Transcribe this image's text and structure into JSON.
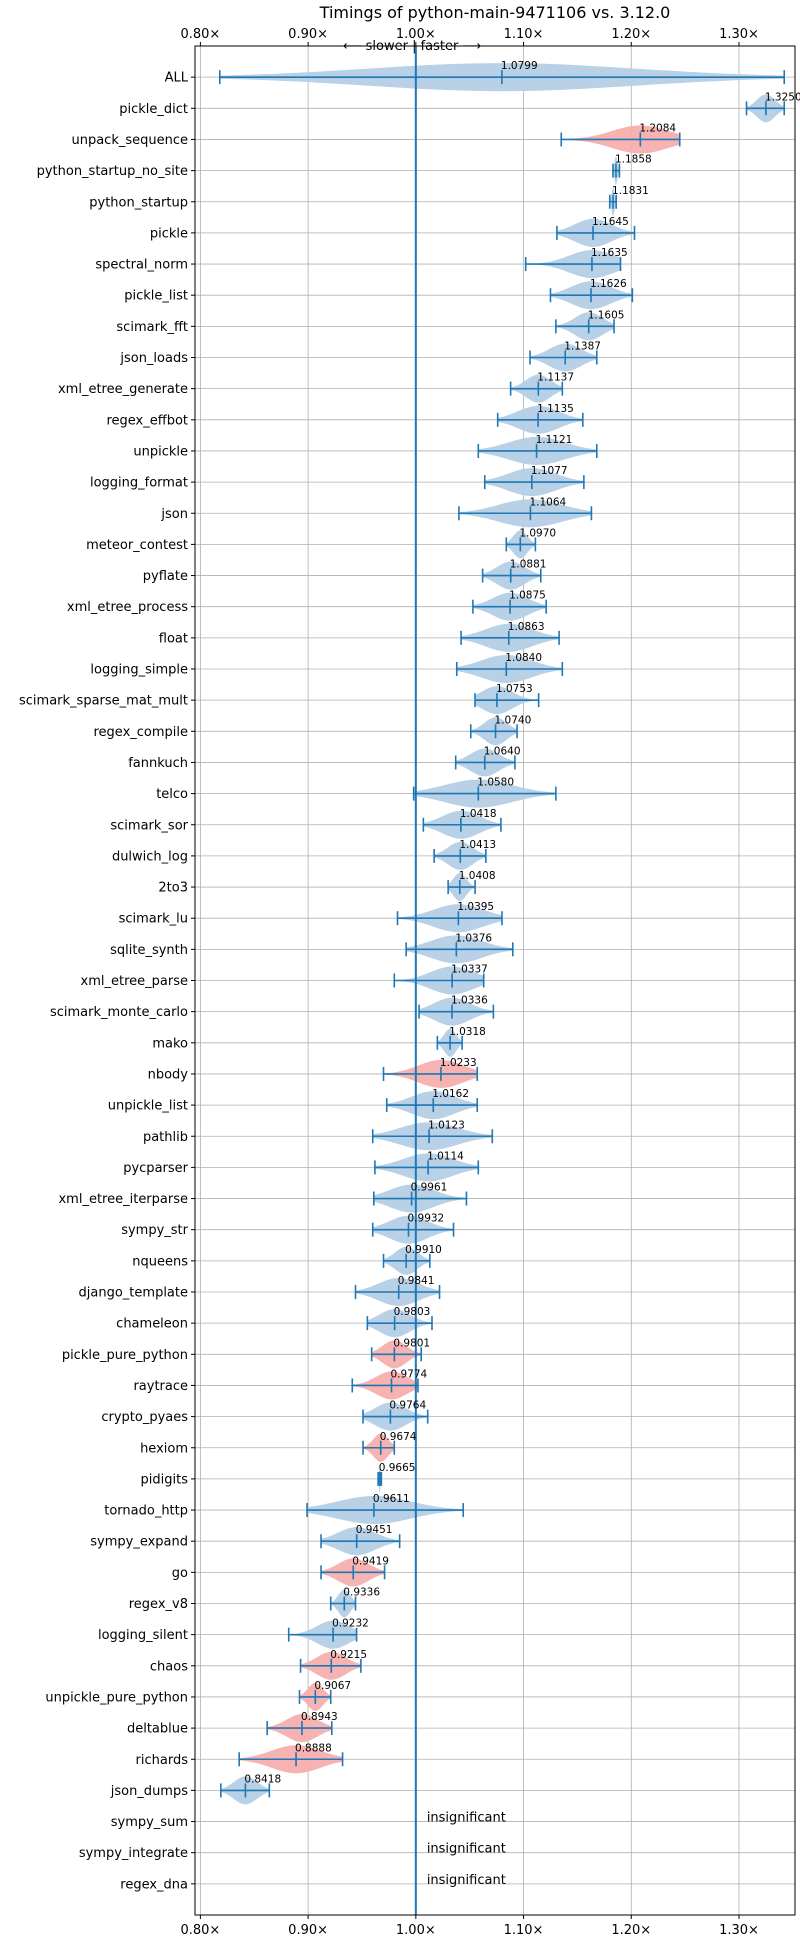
{
  "chart_data": {
    "type": "violin",
    "title": "Timings of python-main-9471106 vs. 3.12.0",
    "direction_label": "⟵ slower | faster ⟶",
    "xlim": [
      0.795,
      1.352
    ],
    "reference_value": 1.0,
    "x_ticks": [
      {
        "value": 0.8,
        "label": "0.80×"
      },
      {
        "value": 0.9,
        "label": "0.90×"
      },
      {
        "value": 1.0,
        "label": "1.00×"
      },
      {
        "value": 1.1,
        "label": "1.10×"
      },
      {
        "value": 1.2,
        "label": "1.20×"
      },
      {
        "value": 1.3,
        "label": "1.30×"
      }
    ],
    "grid": true,
    "colors": {
      "faster": "#b4cfe6",
      "slower": "#f7aeae",
      "line": "#1f77b4",
      "grid": "#b0b0b0"
    },
    "benchmarks": [
      {
        "name": "ALL",
        "value": 1.0799,
        "label": "1.0799",
        "min": 0.818,
        "max": 1.342,
        "status": "faster"
      },
      {
        "name": "pickle_dict",
        "value": 1.325,
        "label": "1.3250",
        "min": 1.307,
        "max": 1.342,
        "status": "faster"
      },
      {
        "name": "unpack_sequence",
        "value": 1.2084,
        "label": "1.2084",
        "min": 1.135,
        "max": 1.245,
        "status": "slower"
      },
      {
        "name": "python_startup_no_site",
        "value": 1.1858,
        "label": "1.1858",
        "min": 1.183,
        "max": 1.189,
        "status": "faster"
      },
      {
        "name": "python_startup",
        "value": 1.1831,
        "label": "1.1831",
        "min": 1.18,
        "max": 1.186,
        "status": "faster"
      },
      {
        "name": "pickle",
        "value": 1.1645,
        "label": "1.1645",
        "min": 1.131,
        "max": 1.203,
        "status": "faster"
      },
      {
        "name": "spectral_norm",
        "value": 1.1635,
        "label": "1.1635",
        "min": 1.102,
        "max": 1.19,
        "status": "faster"
      },
      {
        "name": "pickle_list",
        "value": 1.1626,
        "label": "1.1626",
        "min": 1.125,
        "max": 1.201,
        "status": "faster"
      },
      {
        "name": "scimark_fft",
        "value": 1.1605,
        "label": "1.1605",
        "min": 1.13,
        "max": 1.184,
        "status": "faster"
      },
      {
        "name": "json_loads",
        "value": 1.1387,
        "label": "1.1387",
        "min": 1.106,
        "max": 1.168,
        "status": "faster"
      },
      {
        "name": "xml_etree_generate",
        "value": 1.1137,
        "label": "1.1137",
        "min": 1.088,
        "max": 1.136,
        "status": "faster"
      },
      {
        "name": "regex_effbot",
        "value": 1.1135,
        "label": "1.1135",
        "min": 1.076,
        "max": 1.155,
        "status": "faster"
      },
      {
        "name": "unpickle",
        "value": 1.1121,
        "label": "1.1121",
        "min": 1.058,
        "max": 1.168,
        "status": "faster"
      },
      {
        "name": "logging_format",
        "value": 1.1077,
        "label": "1.1077",
        "min": 1.064,
        "max": 1.156,
        "status": "faster"
      },
      {
        "name": "json",
        "value": 1.1064,
        "label": "1.1064",
        "min": 1.04,
        "max": 1.163,
        "status": "faster"
      },
      {
        "name": "meteor_contest",
        "value": 1.097,
        "label": "1.0970",
        "min": 1.084,
        "max": 1.111,
        "status": "faster"
      },
      {
        "name": "pyflate",
        "value": 1.0881,
        "label": "1.0881",
        "min": 1.062,
        "max": 1.116,
        "status": "faster"
      },
      {
        "name": "xml_etree_process",
        "value": 1.0875,
        "label": "1.0875",
        "min": 1.053,
        "max": 1.121,
        "status": "faster"
      },
      {
        "name": "float",
        "value": 1.0863,
        "label": "1.0863",
        "min": 1.042,
        "max": 1.133,
        "status": "faster"
      },
      {
        "name": "logging_simple",
        "value": 1.084,
        "label": "1.0840",
        "min": 1.038,
        "max": 1.136,
        "status": "faster"
      },
      {
        "name": "scimark_sparse_mat_mult",
        "value": 1.0753,
        "label": "1.0753",
        "min": 1.055,
        "max": 1.114,
        "status": "faster"
      },
      {
        "name": "regex_compile",
        "value": 1.074,
        "label": "1.0740",
        "min": 1.051,
        "max": 1.094,
        "status": "faster"
      },
      {
        "name": "fannkuch",
        "value": 1.064,
        "label": "1.0640",
        "min": 1.037,
        "max": 1.092,
        "status": "faster"
      },
      {
        "name": "telco",
        "value": 1.058,
        "label": "1.0580",
        "min": 0.998,
        "max": 1.13,
        "status": "faster"
      },
      {
        "name": "scimark_sor",
        "value": 1.0418,
        "label": "1.0418",
        "min": 1.007,
        "max": 1.079,
        "status": "faster"
      },
      {
        "name": "dulwich_log",
        "value": 1.0413,
        "label": "1.0413",
        "min": 1.017,
        "max": 1.065,
        "status": "faster"
      },
      {
        "name": "2to3",
        "value": 1.0408,
        "label": "1.0408",
        "min": 1.03,
        "max": 1.055,
        "status": "faster"
      },
      {
        "name": "scimark_lu",
        "value": 1.0395,
        "label": "1.0395",
        "min": 0.983,
        "max": 1.08,
        "status": "faster"
      },
      {
        "name": "sqlite_synth",
        "value": 1.0376,
        "label": "1.0376",
        "min": 0.991,
        "max": 1.09,
        "status": "faster"
      },
      {
        "name": "xml_etree_parse",
        "value": 1.0337,
        "label": "1.0337",
        "min": 0.98,
        "max": 1.063,
        "status": "faster"
      },
      {
        "name": "scimark_monte_carlo",
        "value": 1.0336,
        "label": "1.0336",
        "min": 1.003,
        "max": 1.072,
        "status": "faster"
      },
      {
        "name": "mako",
        "value": 1.0318,
        "label": "1.0318",
        "min": 1.02,
        "max": 1.043,
        "status": "faster"
      },
      {
        "name": "nbody",
        "value": 1.0233,
        "label": "1.0233",
        "min": 0.97,
        "max": 1.057,
        "status": "slower"
      },
      {
        "name": "unpickle_list",
        "value": 1.0162,
        "label": "1.0162",
        "min": 0.973,
        "max": 1.057,
        "status": "faster"
      },
      {
        "name": "pathlib",
        "value": 1.0123,
        "label": "1.0123",
        "min": 0.96,
        "max": 1.071,
        "status": "faster"
      },
      {
        "name": "pycparser",
        "value": 1.0114,
        "label": "1.0114",
        "min": 0.962,
        "max": 1.058,
        "status": "faster"
      },
      {
        "name": "xml_etree_iterparse",
        "value": 0.9961,
        "label": "0.9961",
        "min": 0.961,
        "max": 1.047,
        "status": "faster"
      },
      {
        "name": "sympy_str",
        "value": 0.9932,
        "label": "0.9932",
        "min": 0.96,
        "max": 1.035,
        "status": "faster"
      },
      {
        "name": "nqueens",
        "value": 0.991,
        "label": "0.9910",
        "min": 0.97,
        "max": 1.013,
        "status": "faster"
      },
      {
        "name": "django_template",
        "value": 0.9841,
        "label": "0.9841",
        "min": 0.944,
        "max": 1.022,
        "status": "faster"
      },
      {
        "name": "chameleon",
        "value": 0.9803,
        "label": "0.9803",
        "min": 0.955,
        "max": 1.015,
        "status": "faster"
      },
      {
        "name": "pickle_pure_python",
        "value": 0.9801,
        "label": "0.9801",
        "min": 0.959,
        "max": 1.005,
        "status": "slower"
      },
      {
        "name": "raytrace",
        "value": 0.9774,
        "label": "0.9774",
        "min": 0.941,
        "max": 1.002,
        "status": "slower"
      },
      {
        "name": "crypto_pyaes",
        "value": 0.9764,
        "label": "0.9764",
        "min": 0.951,
        "max": 1.011,
        "status": "faster"
      },
      {
        "name": "hexiom",
        "value": 0.9674,
        "label": "0.9674",
        "min": 0.951,
        "max": 0.98,
        "status": "slower"
      },
      {
        "name": "pidigits",
        "value": 0.9665,
        "label": "0.9665",
        "min": 0.965,
        "max": 0.968,
        "status": "faster"
      },
      {
        "name": "tornado_http",
        "value": 0.9611,
        "label": "0.9611",
        "min": 0.899,
        "max": 1.044,
        "status": "faster"
      },
      {
        "name": "sympy_expand",
        "value": 0.9451,
        "label": "0.9451",
        "min": 0.912,
        "max": 0.985,
        "status": "faster"
      },
      {
        "name": "go",
        "value": 0.9419,
        "label": "0.9419",
        "min": 0.912,
        "max": 0.971,
        "status": "slower"
      },
      {
        "name": "regex_v8",
        "value": 0.9336,
        "label": "0.9336",
        "min": 0.921,
        "max": 0.944,
        "status": "faster"
      },
      {
        "name": "logging_silent",
        "value": 0.9232,
        "label": "0.9232",
        "min": 0.882,
        "max": 0.945,
        "status": "faster"
      },
      {
        "name": "chaos",
        "value": 0.9215,
        "label": "0.9215",
        "min": 0.893,
        "max": 0.949,
        "status": "slower"
      },
      {
        "name": "unpickle_pure_python",
        "value": 0.9067,
        "label": "0.9067",
        "min": 0.892,
        "max": 0.921,
        "status": "slower"
      },
      {
        "name": "deltablue",
        "value": 0.8943,
        "label": "0.8943",
        "min": 0.862,
        "max": 0.922,
        "status": "slower"
      },
      {
        "name": "richards",
        "value": 0.8888,
        "label": "0.8888",
        "min": 0.836,
        "max": 0.932,
        "status": "slower"
      },
      {
        "name": "json_dumps",
        "value": 0.8418,
        "label": "0.8418",
        "min": 0.819,
        "max": 0.864,
        "status": "faster"
      },
      {
        "name": "sympy_sum",
        "value": null,
        "label": "insignificant",
        "status": "insignificant"
      },
      {
        "name": "sympy_integrate",
        "value": null,
        "label": "insignificant",
        "status": "insignificant"
      },
      {
        "name": "regex_dna",
        "value": null,
        "label": "insignificant",
        "status": "insignificant"
      }
    ]
  }
}
